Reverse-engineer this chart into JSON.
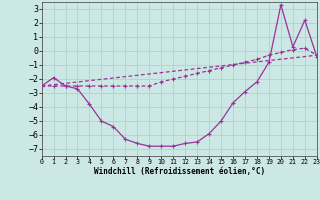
{
  "xlabel": "Windchill (Refroidissement éolien,°C)",
  "bg_color": "#cce8e5",
  "grid_color": "#aad4cc",
  "line_color": "#993399",
  "xlim": [
    0,
    23
  ],
  "ylim": [
    -7.5,
    3.5
  ],
  "yticks": [
    3,
    2,
    1,
    0,
    -1,
    -2,
    -3,
    -4,
    -5,
    -6,
    -7
  ],
  "xticks": [
    0,
    1,
    2,
    3,
    4,
    5,
    6,
    7,
    8,
    9,
    10,
    11,
    12,
    13,
    14,
    15,
    16,
    17,
    18,
    19,
    20,
    21,
    22,
    23
  ],
  "curve1_x": [
    0,
    1,
    2,
    3,
    4,
    5,
    6,
    7,
    8,
    9,
    10,
    11,
    12,
    13,
    14,
    15,
    16,
    17,
    18,
    19,
    20,
    21,
    22,
    23
  ],
  "curve1_y": [
    -2.5,
    -1.9,
    -2.5,
    -2.7,
    -3.8,
    -5.0,
    -5.4,
    -6.3,
    -6.6,
    -6.8,
    -6.8,
    -6.8,
    -6.6,
    -6.5,
    -5.9,
    -5.0,
    -3.7,
    -2.9,
    -2.2,
    -0.8,
    3.3,
    0.3,
    2.2,
    -0.4
  ],
  "curve2_x": [
    0,
    1,
    2,
    3,
    4,
    5,
    6,
    7,
    8,
    9,
    10,
    11,
    12,
    13,
    14,
    15,
    16,
    17,
    18,
    19,
    20,
    21,
    22,
    23
  ],
  "curve2_y": [
    -2.5,
    -2.5,
    -2.5,
    -2.5,
    -2.5,
    -2.5,
    -2.5,
    -2.5,
    -2.5,
    -2.5,
    -2.2,
    -2.0,
    -1.8,
    -1.6,
    -1.4,
    -1.2,
    -1.0,
    -0.8,
    -0.6,
    -0.3,
    -0.1,
    0.1,
    0.2,
    -0.3
  ],
  "line3_x": [
    0,
    23
  ],
  "line3_y": [
    -2.5,
    -0.3
  ]
}
